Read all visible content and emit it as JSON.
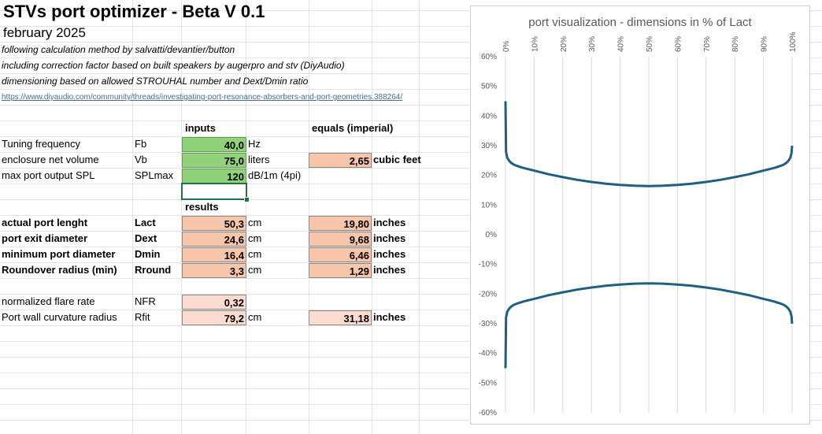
{
  "header": {
    "title": "STVs port optimizer - Beta V 0.1",
    "date": "february 2025",
    "notes": [
      "following calculation method by salvatti/devantier/button",
      "including correction factor based on built speakers by augerpro and stv (DiyAudio)",
      "dimensioning based on allowed STROUHAL number and Dext/Dmin ratio"
    ],
    "link": "https://www.diyaudio.com/community/threads/investigating-port-resonance-absorbers-and-port-geometries.388264/"
  },
  "inputs": {
    "heading": "inputs",
    "imperial_heading": "equals (imperial)",
    "rows": [
      {
        "label": "Tuning frequency",
        "symbol": "Fb",
        "value": "40,0",
        "unit": "Hz",
        "imperial": "",
        "imperial_unit": ""
      },
      {
        "label": "enclosure net volume",
        "symbol": "Vb",
        "value": "75,0",
        "unit": "liters",
        "imperial": "2,65",
        "imperial_unit": "cubic feet"
      },
      {
        "label": "max port output SPL",
        "symbol": "SPLmax",
        "value": "120",
        "unit": "dB/1m (4pi)",
        "imperial": "",
        "imperial_unit": ""
      }
    ]
  },
  "results": {
    "heading": "results",
    "rows": [
      {
        "label": "actual port lenght",
        "symbol": "Lact",
        "value": "50,3",
        "unit": "cm",
        "imperial": "19,80",
        "imperial_unit": "inches"
      },
      {
        "label": "port exit diameter",
        "symbol": "Dext",
        "value": "24,6",
        "unit": "cm",
        "imperial": "9,68",
        "imperial_unit": "inches"
      },
      {
        "label": "minimum port diameter",
        "symbol": "Dmin",
        "value": "16,4",
        "unit": "cm",
        "imperial": "6,46",
        "imperial_unit": "inches"
      },
      {
        "label": "Roundover radius (min)",
        "symbol": "Rround",
        "value": "3,3",
        "unit": "cm",
        "imperial": "1,29",
        "imperial_unit": "inches"
      }
    ],
    "extra": [
      {
        "label": "normalized flare rate",
        "symbol": "NFR",
        "value": "0,32",
        "unit": "",
        "imperial": "",
        "imperial_unit": ""
      },
      {
        "label": "Port wall curvature radius",
        "symbol": "Rfit",
        "value": "79,2",
        "unit": "cm",
        "imperial": "31,18",
        "imperial_unit": "inches"
      }
    ]
  },
  "chart_data": {
    "type": "line",
    "title": "port visualization - dimensions in % of Lact",
    "xlabel": "",
    "ylabel": "",
    "x_ticks": [
      "0%",
      "10%",
      "20%",
      "30%",
      "40%",
      "50%",
      "60%",
      "70%",
      "80%",
      "90%",
      "100%"
    ],
    "y_ticks": [
      "60%",
      "50%",
      "40%",
      "30%",
      "20%",
      "10%",
      "0%",
      "-10%",
      "-20%",
      "-30%",
      "-40%",
      "-50%",
      "-60%"
    ],
    "xlim": [
      0,
      100
    ],
    "ylim": [
      -60,
      60
    ],
    "grid": "vertical",
    "color": "#1f5f7f",
    "series": [
      {
        "x": [
          0,
          0.2,
          0.6,
          1.2,
          2,
          3,
          4,
          6,
          8,
          10,
          15,
          20,
          25,
          30,
          35,
          40,
          45,
          50,
          55,
          60,
          65,
          70,
          75,
          80,
          85,
          90,
          92,
          94,
          96,
          97,
          98,
          98.8,
          99.4,
          99.8,
          100
        ],
        "y": [
          45,
          28,
          26,
          25,
          24.2,
          23.6,
          23.2,
          22.6,
          22.1,
          21.6,
          20.4,
          19.4,
          18.5,
          17.8,
          17.2,
          16.8,
          16.5,
          16.4,
          16.5,
          16.8,
          17.2,
          17.8,
          18.5,
          19.4,
          20.4,
          21.6,
          22.1,
          22.6,
          23.2,
          23.6,
          24.2,
          25,
          26,
          27.5,
          30
        ]
      },
      {
        "x": [
          0,
          0.2,
          0.6,
          1.2,
          2,
          3,
          4,
          6,
          8,
          10,
          15,
          20,
          25,
          30,
          35,
          40,
          45,
          50,
          55,
          60,
          65,
          70,
          75,
          80,
          85,
          90,
          92,
          94,
          96,
          97,
          98,
          98.8,
          99.4,
          99.8,
          100
        ],
        "y": [
          -45,
          -28,
          -26,
          -25,
          -24.2,
          -23.6,
          -23.2,
          -22.6,
          -22.1,
          -21.6,
          -20.4,
          -19.4,
          -18.5,
          -17.8,
          -17.2,
          -16.8,
          -16.5,
          -16.4,
          -16.5,
          -16.8,
          -17.2,
          -17.8,
          -18.5,
          -19.4,
          -20.4,
          -21.6,
          -22.1,
          -22.6,
          -23.2,
          -23.6,
          -24.2,
          -25,
          -26,
          -27.5,
          -30
        ]
      }
    ]
  }
}
